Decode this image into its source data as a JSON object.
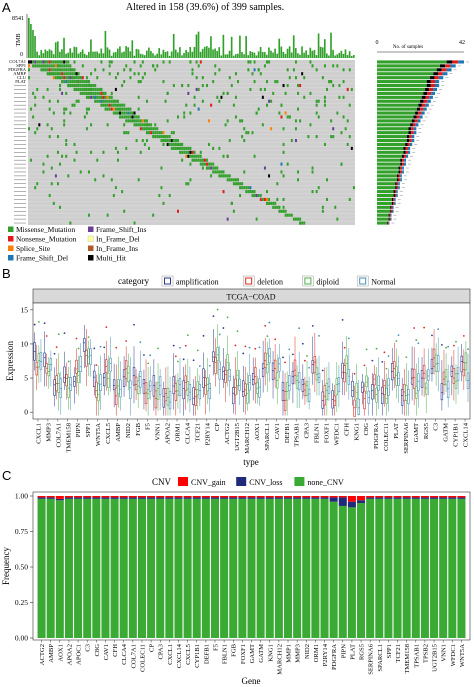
{
  "panelA": {
    "letter": "A",
    "title": "Altered in 158 (39.6%) of 399 samples.",
    "tmb_label": "TMB",
    "tmb_max": "8541",
    "tmb_min": "0",
    "side_axis_label": "No. of samples",
    "side_axis_min": "0",
    "side_axis_max": "42",
    "legend": [
      {
        "label": "Missense_Mutation",
        "color": "#33a02c"
      },
      {
        "label": "Frame_Shift_Ins",
        "color": "#6a3d9a"
      },
      {
        "label": "Nonsense_Mutation",
        "color": "#e31a1c"
      },
      {
        "label": "In_Frame_Del",
        "color": "#ffff99"
      },
      {
        "label": "Splice_Site",
        "color": "#ff7f00"
      },
      {
        "label": "In_Frame_Ins",
        "color": "#b15928"
      },
      {
        "label": "Frame_Shift_Del",
        "color": "#1f78b4"
      },
      {
        "label": "Multi_Hit",
        "color": "#000000"
      }
    ],
    "gene_rows": 42,
    "gene_labels": [
      "COL7A1",
      "SPP1",
      "PDGFRA",
      "AMBP",
      "CLU",
      "PLAT"
    ],
    "altered_counts": [
      42,
      38,
      36,
      34,
      32,
      30,
      30,
      29,
      28,
      27,
      26,
      25,
      24,
      23,
      22,
      21,
      20,
      19,
      19,
      18,
      18,
      17,
      16,
      16,
      15,
      14,
      14,
      13,
      13,
      12,
      12,
      11,
      11,
      10,
      10,
      9,
      9,
      8,
      8,
      7,
      7,
      6
    ]
  },
  "panelB": {
    "letter": "B",
    "legend_title": "category",
    "legend": [
      {
        "label": "amplification",
        "color": "#2b3a8f"
      },
      {
        "label": "deletion",
        "color": "#d73027"
      },
      {
        "label": "diploid",
        "color": "#4daf4a"
      },
      {
        "label": "Normal",
        "color": "#4a90b8"
      }
    ],
    "strip_label": "TCGA−COAD",
    "ylabel": "Expression",
    "xlabel": "type",
    "yticks": [
      "0",
      "5",
      "10",
      "15"
    ],
    "genes": [
      "CXCL1",
      "MMP3",
      "COL7A1",
      "TMEM158",
      "PIPN",
      "SPP1",
      "WNT5A",
      "CXCL5",
      "AMBP",
      "NID2",
      "FGB",
      "F5",
      "VNN1",
      "APOA2",
      "ORM1",
      "CLCA4",
      "TCF21",
      "P2RY14",
      "CP",
      "ACTG2",
      "UGT2B15",
      "MARCH12",
      "AOX1",
      "SPARCL1",
      "CAV1",
      "DEFB1",
      "TPSAB1",
      "CPA3",
      "FBLN1",
      "FOXF1",
      "WFDC1",
      "CFH",
      "KNG1",
      "C8G",
      "PDGFRA",
      "COLEC11",
      "PLAT",
      "SERPINA6",
      "GAMT",
      "RGS5",
      "C3",
      "GATM",
      "CYP1B1",
      "CXCL14"
    ],
    "medians": [
      8,
      7,
      4,
      5,
      6,
      9,
      4,
      6,
      3,
      5,
      4,
      3,
      3,
      2,
      4,
      4,
      3,
      4,
      7,
      6,
      4,
      3,
      4,
      7,
      6,
      3,
      5,
      4,
      6,
      3,
      3,
      6,
      2,
      3,
      4,
      3,
      5,
      3,
      4,
      5,
      7,
      4,
      6,
      6
    ]
  },
  "panelC": {
    "letter": "C",
    "legend_title": "CNV",
    "legend": [
      {
        "label": "CNV_gain",
        "color": "#ff0000"
      },
      {
        "label": "CNV_loss",
        "color": "#1f2a7a"
      },
      {
        "label": "none_CNV",
        "color": "#3aaa35"
      }
    ],
    "ylabel": "Frequency",
    "xlabel": "Gene",
    "yticks": [
      "0.00",
      "0.25",
      "0.50",
      "0.75",
      "1.00"
    ],
    "chart_data": {
      "type": "bar",
      "categories": [
        "ACTG2",
        "AMBP",
        "AOX1",
        "APOA2",
        "APOC1",
        "C3",
        "C8G",
        "CAV1",
        "CFH",
        "CLCA4",
        "COL7A1",
        "COLEC11",
        "CP",
        "CPA3",
        "CXCL1",
        "CXCL14",
        "CXCL5",
        "CYP1B1",
        "DEFB1",
        "F5",
        "FBLN1",
        "FGB",
        "FOXF1",
        "GAMT",
        "GATM",
        "KNG1",
        "MARCH12",
        "MMP1",
        "MMP3",
        "NID2",
        "ORM1",
        "P2RY14",
        "PDGFRA",
        "PIPN",
        "PLAT",
        "RGS5",
        "SERPINA6",
        "SPARCL1",
        "SPP1",
        "TCF21",
        "TMEM158",
        "TPSAB1",
        "TPSB2",
        "UGT2B15",
        "VNN1",
        "WFDC1",
        "WNT5A"
      ],
      "ylim": [
        0,
        1
      ],
      "series": [
        {
          "name": "CNV_gain",
          "values": [
            0.01,
            0.01,
            0.02,
            0.01,
            0.01,
            0.01,
            0.01,
            0.01,
            0.01,
            0.01,
            0.01,
            0.01,
            0.01,
            0.01,
            0.01,
            0.01,
            0.01,
            0.01,
            0.01,
            0.01,
            0.01,
            0.01,
            0.01,
            0.01,
            0.01,
            0.01,
            0.01,
            0.01,
            0.01,
            0.01,
            0.01,
            0.01,
            0.01,
            0.01,
            0.04,
            0.03,
            0.01,
            0.01,
            0.01,
            0.01,
            0.01,
            0.01,
            0.01,
            0.01,
            0.01,
            0.01,
            0.01
          ]
        },
        {
          "name": "CNV_loss",
          "values": [
            0.01,
            0.01,
            0.01,
            0.01,
            0.01,
            0.01,
            0.01,
            0.01,
            0.01,
            0.01,
            0.01,
            0.01,
            0.01,
            0.01,
            0.01,
            0.01,
            0.01,
            0.01,
            0.01,
            0.01,
            0.01,
            0.01,
            0.01,
            0.01,
            0.01,
            0.01,
            0.01,
            0.01,
            0.01,
            0.01,
            0.01,
            0.01,
            0.03,
            0.06,
            0.04,
            0.02,
            0.01,
            0.01,
            0.01,
            0.01,
            0.01,
            0.01,
            0.01,
            0.01,
            0.01,
            0.01,
            0.01
          ]
        },
        {
          "name": "none_CNV",
          "values": [
            0.98,
            0.98,
            0.97,
            0.98,
            0.98,
            0.98,
            0.98,
            0.98,
            0.98,
            0.98,
            0.98,
            0.98,
            0.98,
            0.98,
            0.98,
            0.98,
            0.98,
            0.98,
            0.98,
            0.98,
            0.98,
            0.98,
            0.98,
            0.98,
            0.98,
            0.98,
            0.98,
            0.98,
            0.98,
            0.98,
            0.98,
            0.98,
            0.96,
            0.93,
            0.92,
            0.95,
            0.98,
            0.98,
            0.98,
            0.98,
            0.98,
            0.98,
            0.98,
            0.98,
            0.98,
            0.98,
            0.98
          ]
        }
      ]
    }
  }
}
